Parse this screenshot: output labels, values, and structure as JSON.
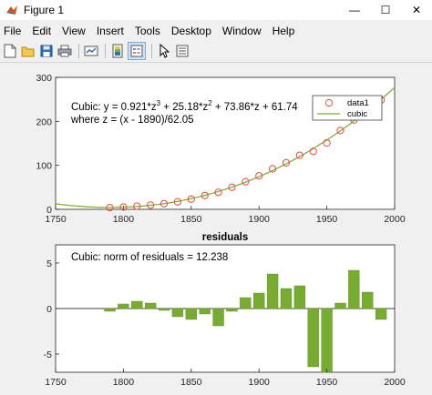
{
  "window": {
    "title": "Figure 1",
    "controls": {
      "minimize": "—",
      "maximize": "☐",
      "close": "✕"
    }
  },
  "menu": [
    "File",
    "Edit",
    "View",
    "Insert",
    "Tools",
    "Desktop",
    "Window",
    "Help"
  ],
  "toolbar": {
    "icons": [
      "new-figure-icon",
      "open-file-icon",
      "save-icon",
      "print-icon",
      "link-plot-icon",
      "colorbar-icon",
      "legend-icon",
      "edit-plot-icon",
      "property-inspector-icon"
    ]
  },
  "colors": {
    "marker": "#e74c3c",
    "curve": "#78ab2d",
    "bar": "#77ac30"
  },
  "chart_data": [
    {
      "type": "scatter",
      "title": "",
      "xlabel": "",
      "ylabel": "",
      "xlim": [
        1750,
        2000
      ],
      "ylim": [
        0,
        300
      ],
      "xticks": [
        "1750",
        "1800",
        "1850",
        "1900",
        "1950",
        "2000"
      ],
      "yticks": [
        "0",
        "100",
        "200",
        "300"
      ],
      "annotation_line1": "Cubic:  y = 0.921*z",
      "annotation_line2": "where z = (x - 1890)/62.05",
      "legend": [
        "data1",
        "cubic"
      ],
      "legend_position": "top-right",
      "series": [
        {
          "name": "data1",
          "x": [
            1790,
            1800,
            1810,
            1820,
            1830,
            1840,
            1850,
            1860,
            1870,
            1880,
            1890,
            1900,
            1910,
            1920,
            1930,
            1940,
            1950,
            1960,
            1970,
            1980,
            1990
          ],
          "values": [
            3.9,
            5.3,
            7.2,
            9.6,
            12.9,
            17.1,
            23.1,
            31.4,
            38.6,
            50.2,
            62.9,
            76.0,
            92.0,
            105.7,
            122.8,
            131.7,
            150.7,
            179.3,
            203.2,
            226.5,
            248.7
          ]
        },
        {
          "name": "cubic",
          "coefficients": [
            0.921,
            25.18,
            73.86,
            61.74
          ],
          "z_center": 1890,
          "z_scale": 62.05,
          "x_range": [
            1750,
            2000
          ]
        }
      ]
    },
    {
      "type": "bar",
      "title": "residuals",
      "xlabel": "",
      "ylabel": "",
      "xlim": [
        1750,
        2000
      ],
      "ylim": [
        -7,
        7
      ],
      "xticks": [
        "1750",
        "1800",
        "1850",
        "1900",
        "1950",
        "2000"
      ],
      "yticks": [
        "-5",
        "0",
        "5"
      ],
      "annotation": "Cubic: norm of residuals = 12.238",
      "categories": [
        1790,
        1800,
        1810,
        1820,
        1830,
        1840,
        1850,
        1860,
        1870,
        1880,
        1890,
        1900,
        1910,
        1920,
        1930,
        1940,
        1950,
        1960,
        1970,
        1980,
        1990
      ],
      "values": [
        -0.3,
        0.5,
        0.8,
        0.6,
        -0.2,
        -0.9,
        -1.2,
        -0.6,
        -1.9,
        -0.3,
        1.2,
        1.7,
        3.8,
        2.2,
        2.5,
        -6.4,
        -7.0,
        0.6,
        4.2,
        1.8,
        -1.2
      ]
    }
  ]
}
